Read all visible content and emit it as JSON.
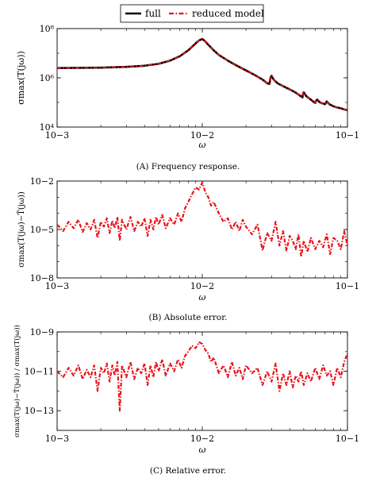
{
  "legend": {
    "entries": [
      {
        "name": "full",
        "color": "#000000",
        "style": "solid"
      },
      {
        "name": "reduced model",
        "color": "#e8141b",
        "style": "dash-dot"
      }
    ]
  },
  "chart_data": [
    {
      "id": "a",
      "type": "line",
      "caption": "(A) Frequency response.",
      "xlabel": "ω",
      "ylabel": "σmax(T(jω))",
      "xscale": "log",
      "yscale": "log",
      "xlim": [
        0.001,
        0.1
      ],
      "ylim": [
        10000,
        100000000
      ],
      "xticks": [
        0.001,
        0.01,
        0.1
      ],
      "xticklabels": [
        "10−3",
        "10−2",
        "10−1"
      ],
      "yticks": [
        10000,
        1000000,
        100000000
      ],
      "yticklabels": [
        "10⁴",
        "10⁶",
        "10⁸"
      ],
      "series": [
        {
          "name": "full",
          "color": "#000000",
          "x": [
            0.001,
            0.002,
            0.003,
            0.004,
            0.005,
            0.006,
            0.007,
            0.008,
            0.009,
            0.0095,
            0.01,
            0.0105,
            0.011,
            0.012,
            0.013,
            0.015,
            0.017,
            0.02,
            0.023,
            0.026,
            0.028,
            0.029,
            0.0295,
            0.03,
            0.031,
            0.033,
            0.036,
            0.04,
            0.044,
            0.047,
            0.049,
            0.0495,
            0.05,
            0.052,
            0.055,
            0.058,
            0.06,
            0.061,
            0.062,
            0.064,
            0.066,
            0.068,
            0.07,
            0.071,
            0.072,
            0.075,
            0.08,
            0.085,
            0.09,
            0.095,
            0.1
          ],
          "y": [
            2500000,
            2600000,
            2800000,
            3100000,
            3700000,
            5000000,
            7500000,
            13000000,
            25000000,
            33000000,
            38000000,
            30000000,
            22000000,
            13000000,
            8500000,
            5000000,
            3300000,
            2000000,
            1300000,
            850000,
            600000,
            560000,
            1000000,
            1200000,
            850000,
            600000,
            460000,
            340000,
            250000,
            190000,
            160000,
            230000,
            260000,
            180000,
            140000,
            110000,
            95000,
            120000,
            130000,
            105000,
            95000,
            90000,
            85000,
            95000,
            110000,
            85000,
            70000,
            62000,
            58000,
            52000,
            48000
          ]
        }
      ]
    },
    {
      "id": "b",
      "type": "line",
      "caption": "(B) Absolute error.",
      "xlabel": "ω",
      "ylabel": "σmax(T(jω)−T̂(jω))",
      "xscale": "log",
      "yscale": "log",
      "xlim": [
        0.001,
        0.1
      ],
      "ylim": [
        1e-08,
        0.01
      ],
      "xticks": [
        0.001,
        0.01,
        0.1
      ],
      "xticklabels": [
        "10−3",
        "10−2",
        "10−1"
      ],
      "yticks": [
        1e-08,
        1e-05,
        0.01
      ],
      "yticklabels": [
        "10−8",
        "10−5",
        "10−2"
      ],
      "series": [
        {
          "name": "reduced model",
          "color": "#e8141b",
          "x": [
            0.001,
            0.0011,
            0.0012,
            0.0013,
            0.0014,
            0.0015,
            0.0016,
            0.0017,
            0.0018,
            0.0019,
            0.002,
            0.0021,
            0.0022,
            0.0023,
            0.0024,
            0.0025,
            0.0026,
            0.0027,
            0.0028,
            0.003,
            0.0032,
            0.0034,
            0.0036,
            0.0038,
            0.004,
            0.0042,
            0.0044,
            0.0046,
            0.0048,
            0.005,
            0.0053,
            0.0056,
            0.006,
            0.0064,
            0.0068,
            0.0072,
            0.0076,
            0.008,
            0.0085,
            0.009,
            0.0095,
            0.01,
            0.0105,
            0.011,
            0.0115,
            0.012,
            0.013,
            0.014,
            0.015,
            0.016,
            0.017,
            0.018,
            0.019,
            0.02,
            0.022,
            0.024,
            0.026,
            0.028,
            0.03,
            0.032,
            0.034,
            0.036,
            0.038,
            0.04,
            0.042,
            0.044,
            0.046,
            0.048,
            0.05,
            0.053,
            0.056,
            0.06,
            0.064,
            0.068,
            0.072,
            0.076,
            0.08,
            0.085,
            0.09,
            0.095,
            0.1
          ],
          "y": [
            2e-05,
            8e-06,
            3e-05,
            1.2e-05,
            4e-05,
            7e-06,
            2.5e-05,
            1e-05,
            4e-05,
            3e-06,
            3e-05,
            1.5e-05,
            5e-05,
            6e-06,
            3.5e-05,
            1.2e-05,
            6e-05,
            2e-06,
            4e-05,
            1e-05,
            6e-05,
            8e-06,
            3e-05,
            1.5e-05,
            5e-05,
            4e-06,
            4e-05,
            1e-05,
            6e-05,
            2e-05,
            8e-05,
            1.2e-05,
            5e-05,
            2e-05,
            0.0001,
            3e-05,
            0.0002,
            0.0005,
            0.0015,
            0.004,
            0.003,
            0.008,
            0.002,
            0.001,
            0.0003,
            0.0005,
            0.0001,
            3e-05,
            5e-05,
            1e-05,
            3e-05,
            8e-06,
            4e-05,
            1.5e-05,
            5e-06,
            2e-05,
            5e-07,
            6e-06,
            2e-06,
            3e-05,
            1e-06,
            8e-06,
            5e-07,
            4e-06,
            2e-06,
            6e-07,
            5e-06,
            2e-07,
            2e-06,
            4e-07,
            3e-06,
            6e-07,
            2e-06,
            8e-07,
            5e-06,
            3e-07,
            3e-06,
            2e-06,
            6e-07,
            8e-06,
            1e-06
          ]
        }
      ]
    },
    {
      "id": "c",
      "type": "line",
      "caption": "(C) Relative error.",
      "xlabel": "ω",
      "ylabel": "σmax(T(jω)−T̂(jω)) / σmax(T(jω))",
      "xscale": "log",
      "yscale": "log",
      "xlim": [
        0.001,
        0.1
      ],
      "ylim": [
        1e-14,
        1e-09
      ],
      "xticks": [
        0.001,
        0.01,
        0.1
      ],
      "xticklabels": [
        "10−3",
        "10−2",
        "10−1"
      ],
      "yticks": [
        1e-13,
        1e-11,
        1e-09
      ],
      "yticklabels": [
        "10−13",
        "10−11",
        "10−9"
      ],
      "series": [
        {
          "name": "reduced model",
          "color": "#e8141b",
          "x": [
            0.001,
            0.0011,
            0.0012,
            0.0013,
            0.0014,
            0.0015,
            0.0016,
            0.0017,
            0.0018,
            0.0019,
            0.002,
            0.0021,
            0.0022,
            0.0023,
            0.0024,
            0.0025,
            0.0026,
            0.0027,
            0.0028,
            0.003,
            0.0032,
            0.0034,
            0.0036,
            0.0038,
            0.004,
            0.0042,
            0.0044,
            0.0046,
            0.0048,
            0.005,
            0.0053,
            0.0056,
            0.006,
            0.0064,
            0.0068,
            0.0072,
            0.0076,
            0.008,
            0.0085,
            0.009,
            0.0095,
            0.01,
            0.0105,
            0.011,
            0.0115,
            0.012,
            0.013,
            0.014,
            0.015,
            0.016,
            0.017,
            0.018,
            0.019,
            0.02,
            0.022,
            0.024,
            0.026,
            0.028,
            0.03,
            0.032,
            0.034,
            0.036,
            0.038,
            0.04,
            0.042,
            0.044,
            0.046,
            0.048,
            0.05,
            0.053,
            0.056,
            0.06,
            0.064,
            0.068,
            0.072,
            0.076,
            0.08,
            0.085,
            0.09,
            0.095,
            0.1
          ],
          "y": [
            1e-11,
            5e-12,
            1.5e-11,
            6e-12,
            2e-11,
            4e-12,
            1.2e-11,
            5e-12,
            2e-11,
            1e-12,
            1.5e-11,
            8e-12,
            2.5e-11,
            3e-12,
            2e-11,
            6e-12,
            3e-11,
            1e-13,
            2e-11,
            5e-12,
            3e-11,
            4e-12,
            1.5e-11,
            8e-12,
            2.5e-11,
            2e-12,
            2e-11,
            5e-12,
            3e-11,
            1e-11,
            4e-11,
            6e-12,
            2.5e-11,
            1e-11,
            4e-11,
            1.5e-11,
            6e-11,
            1e-10,
            2e-10,
            1.5e-10,
            3e-10,
            2.5e-10,
            1.2e-10,
            8e-11,
            3e-11,
            5e-11,
            8e-12,
            2e-11,
            5e-12,
            3e-11,
            6e-12,
            1.5e-11,
            4e-12,
            2e-11,
            8e-12,
            1.5e-11,
            2e-12,
            1e-11,
            3e-12,
            2.5e-11,
            1e-12,
            8e-12,
            2e-12,
            1e-11,
            1.5e-12,
            6e-12,
            3e-12,
            1e-11,
            2e-12,
            8e-12,
            3e-12,
            1.5e-11,
            4e-12,
            2e-11,
            6e-12,
            1e-11,
            2e-12,
            1.5e-11,
            5e-12,
            3e-11,
            8e-11
          ]
        }
      ]
    }
  ]
}
